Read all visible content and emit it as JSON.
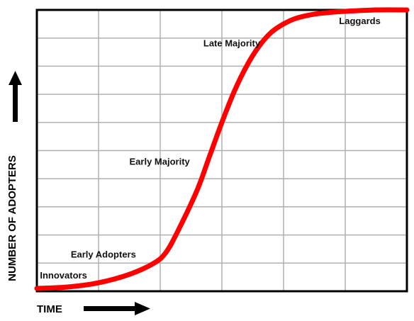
{
  "chart_data": {
    "type": "line",
    "title": "",
    "xlabel": "TIME",
    "ylabel": "NUMBER OF ADOPTERS",
    "grid": true,
    "legend": "none",
    "xlim": [
      0,
      6
    ],
    "ylim": [
      0,
      10
    ],
    "series": [
      {
        "color": "#ff0000",
        "x": [
          0,
          0.5,
          1,
          1.5,
          1.9,
          2.1,
          2.3,
          2.6,
          2.8,
          3.0,
          3.2,
          3.4,
          3.6,
          3.8,
          4.0,
          4.2,
          4.5,
          4.8,
          5.0,
          5.5,
          6.0
        ],
        "y": [
          0.1,
          0.15,
          0.3,
          0.6,
          1.0,
          1.4,
          2.2,
          3.6,
          4.8,
          6.0,
          7.1,
          8.0,
          8.7,
          9.2,
          9.5,
          9.7,
          9.85,
          9.92,
          9.95,
          10.0,
          10.0
        ]
      }
    ],
    "annotations": [
      {
        "text": "Innovators",
        "x": 0.05,
        "y": 0.45
      },
      {
        "text": "Early Adopters",
        "x": 0.55,
        "y": 1.2
      },
      {
        "text": "Early Majority",
        "x": 1.5,
        "y": 4.5
      },
      {
        "text": "Late Majority",
        "x": 2.7,
        "y": 8.7
      },
      {
        "text": "Laggards",
        "x": 4.9,
        "y": 9.5
      }
    ]
  }
}
